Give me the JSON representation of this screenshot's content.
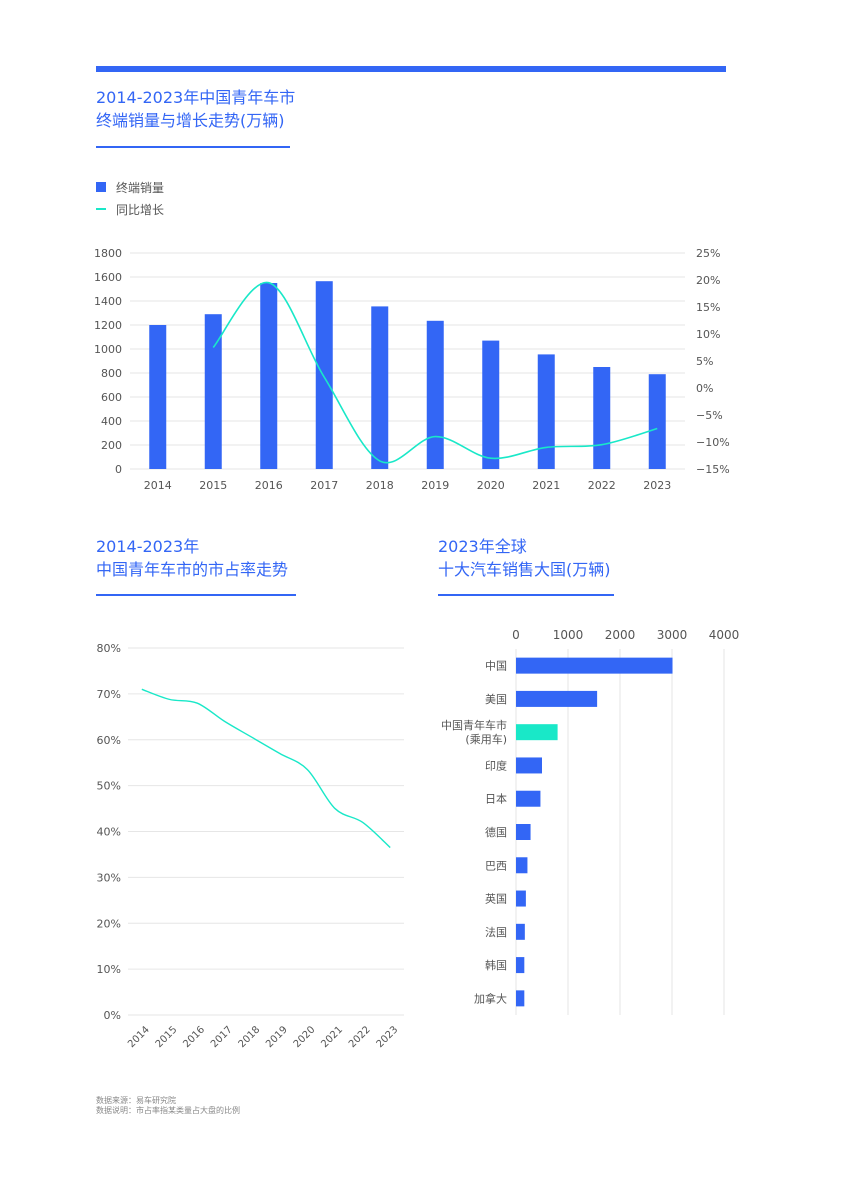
{
  "colors": {
    "primary": "#3366f5",
    "accent": "#19e8c8",
    "grid": "#e6e6e6",
    "text": "#555555"
  },
  "header": {
    "chart1_title": [
      "2014-2023年中国青年车市",
      "终端销量与增长走势(万辆)"
    ],
    "chart2_title": [
      "2014-2023年",
      "中国青年车市的市占率走势"
    ],
    "chart3_title": [
      "2023年全球",
      "十大汽车销售大国(万辆)"
    ]
  },
  "legend": {
    "bar_label": "终端销量",
    "line_label": "同比增长"
  },
  "footer": {
    "source": "数据来源：易车研究院",
    "note": "数据说明：市占率指某类量占大盘的比例"
  },
  "chart_data": [
    {
      "type": "bar",
      "categories": [
        "2014",
        "2015",
        "2016",
        "2017",
        "2018",
        "2019",
        "2020",
        "2021",
        "2022",
        "2023"
      ],
      "series": [
        {
          "name": "终端销量",
          "type": "bar",
          "axis": "left",
          "values": [
            1200,
            1290,
            1550,
            1565,
            1355,
            1235,
            1070,
            955,
            850,
            790
          ]
        },
        {
          "name": "同比增长",
          "type": "line",
          "axis": "right",
          "values": [
            null,
            7.5,
            19.5,
            2,
            -13.5,
            -9,
            -13,
            -11,
            -10.5,
            -7.5
          ]
        }
      ],
      "ylim": [
        0,
        1800
      ],
      "yticks": [
        "0",
        "200",
        "400",
        "600",
        "800",
        "1000",
        "1200",
        "1400",
        "1600",
        "1800"
      ],
      "y2lim": [
        -15,
        25
      ],
      "y2ticks": [
        "−15%",
        "−10%",
        "−5%",
        "0%",
        "5%",
        "10%",
        "15%",
        "20%",
        "25%"
      ],
      "legend": "top-left"
    },
    {
      "type": "line",
      "x": [
        "2014",
        "2015",
        "2016",
        "2017",
        "2018",
        "2019",
        "2020",
        "2021",
        "2022",
        "2023"
      ],
      "series": [
        {
          "values": [
            71,
            68.8,
            68,
            64,
            60.5,
            57,
            53.5,
            45,
            42,
            36.5
          ]
        }
      ],
      "ylim": [
        0,
        80
      ],
      "yticks": [
        "0%",
        "10%",
        "20%",
        "30%",
        "40%",
        "50%",
        "60%",
        "70%",
        "80%"
      ],
      "grid": true
    },
    {
      "type": "bar",
      "orientation": "horizontal",
      "categories": [
        "中国",
        "美国",
        "中国青年车市\n(乘用车)",
        "印度",
        "日本",
        "德国",
        "巴西",
        "英国",
        "法国",
        "韩国",
        "加拿大"
      ],
      "values": [
        3010,
        1560,
        800,
        500,
        470,
        280,
        220,
        190,
        170,
        160,
        160
      ],
      "highlight_index": 2,
      "xlim": [
        0,
        4000
      ],
      "xticks": [
        "0",
        "1000",
        "2000",
        "3000",
        "4000"
      ]
    }
  ]
}
